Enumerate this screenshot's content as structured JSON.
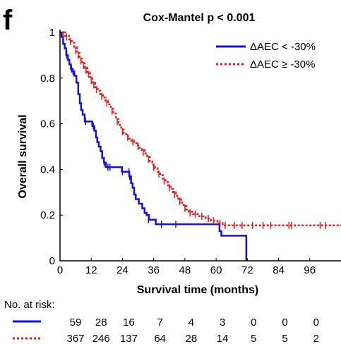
{
  "panel_letter": "f",
  "risk_table": {
    "title": "No. at risk:",
    "rows": [
      {
        "series": "ΔAEC < -30%",
        "counts": [
          "59",
          "28",
          "16",
          "7",
          "4",
          "3",
          "0",
          "0",
          "0"
        ]
      },
      {
        "series": "ΔAEC ≥ -30%",
        "counts": [
          "367",
          "246",
          "137",
          "64",
          "28",
          "14",
          "5",
          "5",
          "2"
        ]
      }
    ]
  },
  "chart_data": {
    "type": "line",
    "title": "Cox-Mantel p < 0.001",
    "xlabel": "Survival time (months)",
    "ylabel": "Overall survival",
    "xlim": [
      0,
      108
    ],
    "ylim": [
      0,
      1
    ],
    "xticks": [
      0,
      12,
      24,
      36,
      48,
      60,
      72,
      84,
      96
    ],
    "yticks": [
      0,
      0.2,
      0.4,
      0.6,
      0.8,
      1
    ],
    "ytick_labels": [
      "0",
      "0.2",
      "0.4",
      "0.6",
      "0.8",
      "1"
    ],
    "legend_position": "top-right",
    "grid": false,
    "series": [
      {
        "name": "ΔAEC < -30%",
        "color": "#1010e0",
        "style": "solid",
        "steps": [
          [
            0,
            1.0
          ],
          [
            0.6,
            0.98
          ],
          [
            1.2,
            0.95
          ],
          [
            1.8,
            0.93
          ],
          [
            2.4,
            0.9
          ],
          [
            3.0,
            0.88
          ],
          [
            3.6,
            0.86
          ],
          [
            4.2,
            0.84
          ],
          [
            4.8,
            0.83
          ],
          [
            5.5,
            0.81
          ],
          [
            6.3,
            0.78
          ],
          [
            7.0,
            0.73
          ],
          [
            7.6,
            0.69
          ],
          [
            8.1,
            0.66
          ],
          [
            8.7,
            0.64
          ],
          [
            9.5,
            0.61
          ],
          [
            12.4,
            0.59
          ],
          [
            13.2,
            0.57
          ],
          [
            13.8,
            0.54
          ],
          [
            14.3,
            0.52
          ],
          [
            14.9,
            0.5
          ],
          [
            15.6,
            0.48
          ],
          [
            16.2,
            0.45
          ],
          [
            16.9,
            0.43
          ],
          [
            17.6,
            0.41
          ],
          [
            23.8,
            0.39
          ],
          [
            26.6,
            0.37
          ],
          [
            27.3,
            0.34
          ],
          [
            27.9,
            0.32
          ],
          [
            28.5,
            0.29
          ],
          [
            29.1,
            0.27
          ],
          [
            30.3,
            0.25
          ],
          [
            31.6,
            0.23
          ],
          [
            32.5,
            0.21
          ],
          [
            33.3,
            0.2
          ],
          [
            34.2,
            0.18
          ],
          [
            36.8,
            0.16
          ],
          [
            61.3,
            0.13
          ],
          [
            62.0,
            0.11
          ],
          [
            71.6,
            0.0
          ]
        ],
        "censored": [
          [
            2.6,
            0.9
          ],
          [
            4.4,
            0.84
          ],
          [
            5.0,
            0.83
          ],
          [
            9.8,
            0.61
          ],
          [
            12.8,
            0.59
          ],
          [
            17.0,
            0.43
          ],
          [
            18.4,
            0.41
          ],
          [
            19.2,
            0.41
          ],
          [
            24.0,
            0.39
          ],
          [
            26.5,
            0.39
          ],
          [
            26.8,
            0.37
          ],
          [
            34.0,
            0.18
          ],
          [
            39.0,
            0.16
          ],
          [
            44.5,
            0.16
          ]
        ],
        "end_x": 71.6
      },
      {
        "name": "ΔAEC ≥ -30%",
        "color": "#e81c1c",
        "style": "dotted",
        "steps": [
          [
            0,
            1.0
          ],
          [
            2,
            0.985
          ],
          [
            3.5,
            0.97
          ],
          [
            4.5,
            0.955
          ],
          [
            5.5,
            0.935
          ],
          [
            6.5,
            0.91
          ],
          [
            7.5,
            0.885
          ],
          [
            8.5,
            0.865
          ],
          [
            9.5,
            0.845
          ],
          [
            10.5,
            0.825
          ],
          [
            11.5,
            0.805
          ],
          [
            12.5,
            0.78
          ],
          [
            13.5,
            0.76
          ],
          [
            14.5,
            0.745
          ],
          [
            15.5,
            0.73
          ],
          [
            16.5,
            0.715
          ],
          [
            17.5,
            0.7
          ],
          [
            18.5,
            0.685
          ],
          [
            19.5,
            0.665
          ],
          [
            20.5,
            0.645
          ],
          [
            21.5,
            0.62
          ],
          [
            22.5,
            0.595
          ],
          [
            23.5,
            0.575
          ],
          [
            24.5,
            0.555
          ],
          [
            25.5,
            0.545
          ],
          [
            26.5,
            0.535
          ],
          [
            27.5,
            0.525
          ],
          [
            28.5,
            0.515
          ],
          [
            29.5,
            0.505
          ],
          [
            30.5,
            0.495
          ],
          [
            31.5,
            0.485
          ],
          [
            32.5,
            0.47
          ],
          [
            33.5,
            0.455
          ],
          [
            34.5,
            0.435
          ],
          [
            35.5,
            0.42
          ],
          [
            36.5,
            0.405
          ],
          [
            37.5,
            0.39
          ],
          [
            38.5,
            0.375
          ],
          [
            39.5,
            0.36
          ],
          [
            40.5,
            0.345
          ],
          [
            41.5,
            0.33
          ],
          [
            42.5,
            0.315
          ],
          [
            43.5,
            0.3
          ],
          [
            44.5,
            0.285
          ],
          [
            45.5,
            0.27
          ],
          [
            46.5,
            0.255
          ],
          [
            47.5,
            0.24
          ],
          [
            48.5,
            0.225
          ],
          [
            49.5,
            0.215
          ],
          [
            51,
            0.205
          ],
          [
            53.5,
            0.195
          ],
          [
            56,
            0.185
          ],
          [
            58,
            0.175
          ],
          [
            60.5,
            0.165
          ],
          [
            62.5,
            0.155
          ]
        ],
        "censored": [
          [
            1.2,
            0.99
          ],
          [
            2.5,
            0.98
          ],
          [
            4.0,
            0.96
          ],
          [
            6.0,
            0.92
          ],
          [
            7.0,
            0.9
          ],
          [
            8.0,
            0.875
          ],
          [
            9.0,
            0.855
          ],
          [
            10.0,
            0.835
          ],
          [
            11.0,
            0.815
          ],
          [
            12.0,
            0.79
          ],
          [
            13.0,
            0.77
          ],
          [
            14.0,
            0.75
          ],
          [
            16.0,
            0.72
          ],
          [
            18.0,
            0.69
          ],
          [
            20.0,
            0.655
          ],
          [
            22.0,
            0.61
          ],
          [
            24.0,
            0.565
          ],
          [
            26.0,
            0.54
          ],
          [
            28.0,
            0.52
          ],
          [
            30.0,
            0.5
          ],
          [
            32.0,
            0.475
          ],
          [
            34.0,
            0.445
          ],
          [
            36.0,
            0.41
          ],
          [
            38.0,
            0.38
          ],
          [
            40.0,
            0.35
          ],
          [
            42.0,
            0.32
          ],
          [
            44.0,
            0.29
          ],
          [
            46.0,
            0.26
          ],
          [
            48.0,
            0.23
          ],
          [
            50.0,
            0.21
          ],
          [
            52.0,
            0.205
          ],
          [
            54.5,
            0.195
          ],
          [
            57.0,
            0.185
          ],
          [
            59.0,
            0.175
          ],
          [
            61.5,
            0.165
          ],
          [
            63.5,
            0.155
          ],
          [
            67.0,
            0.155
          ],
          [
            70.0,
            0.155
          ],
          [
            74.0,
            0.155
          ],
          [
            78.0,
            0.155
          ],
          [
            81.0,
            0.155
          ],
          [
            88.0,
            0.155
          ],
          [
            89.0,
            0.155
          ],
          [
            100.0,
            0.155
          ],
          [
            102.0,
            0.155
          ]
        ],
        "end_x": 108
      }
    ]
  }
}
